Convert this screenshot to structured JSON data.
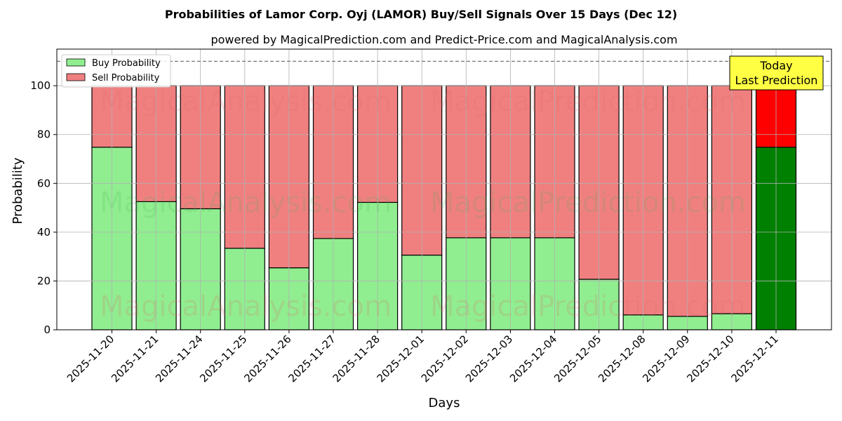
{
  "chart_data": {
    "type": "bar",
    "title": "Probabilities of Lamor Corp. Oyj (LAMOR) Buy/Sell Signals Over 15 Days (Dec 12)",
    "subtitle": "powered by MagicalPrediction.com and Predict-Price.com and MagicalAnalysis.com",
    "xlabel": "Days",
    "ylabel": "Probability",
    "ylim": [
      0,
      115
    ],
    "yticks": [
      0,
      20,
      40,
      60,
      80,
      100
    ],
    "reference_line": 110,
    "grid": true,
    "legend_position": "top-left",
    "categories": [
      "2025-11-20",
      "2025-11-21",
      "2025-11-24",
      "2025-11-25",
      "2025-11-26",
      "2025-11-27",
      "2025-11-28",
      "2025-12-01",
      "2025-12-02",
      "2025-12-03",
      "2025-12-04",
      "2025-12-05",
      "2025-12-08",
      "2025-12-09",
      "2025-12-10",
      "2025-12-11"
    ],
    "series": [
      {
        "name": "Buy Probability",
        "color": "#90ee90",
        "values": [
          74.8,
          52.5,
          49.6,
          33.4,
          25.4,
          37.4,
          52.2,
          30.6,
          37.7,
          37.7,
          37.7,
          20.7,
          6.1,
          5.5,
          6.6,
          74.8
        ]
      },
      {
        "name": "Sell Probability",
        "color": "#f08080",
        "values": [
          25.2,
          47.5,
          50.4,
          66.6,
          74.6,
          62.6,
          47.8,
          69.4,
          62.3,
          62.3,
          62.3,
          79.3,
          93.9,
          94.5,
          93.4,
          25.2
        ]
      }
    ],
    "highlight": {
      "index": 15,
      "buy_color": "#008000",
      "sell_color": "#ff0000",
      "label_line1": "Today",
      "label_line2": "Last Prediction"
    },
    "watermarks": [
      "MagicalAnalysis.com",
      "MagicalPrediction.com"
    ]
  }
}
